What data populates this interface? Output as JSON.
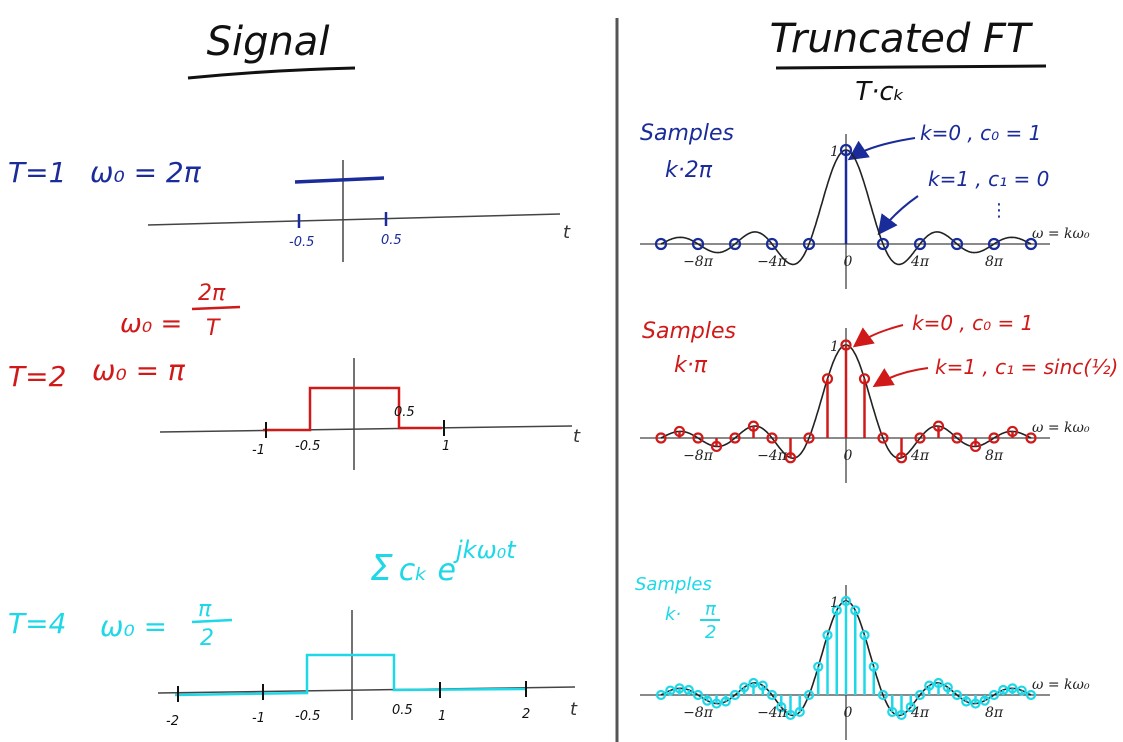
{
  "signal_panel": {
    "title": "Signal",
    "formula_w0": "ω₀ = 2π / T",
    "sum_formula": "Σ cₖ e^{jkω₀t}",
    "rows": [
      {
        "period_label": "T=1",
        "w0_label": "ω₀ = 2π",
        "tick_labels": [
          "-0.5",
          "0.5"
        ],
        "t_label": "t",
        "color": "#1a2b9a"
      },
      {
        "period_label": "T=2",
        "w0_label": "ω₀ = π",
        "tick_labels": [
          "-1",
          "-0.5",
          "0.5",
          "1"
        ],
        "t_label": "t",
        "color": "#d01a1a"
      },
      {
        "period_label": "T=4",
        "w0_label": "ω₀ = π/2",
        "tick_labels": [
          "-2",
          "-1",
          "-0.5",
          "0.5",
          "1",
          "2"
        ],
        "t_label": "t",
        "color": "#1ed8e8"
      }
    ]
  },
  "ft_panel": {
    "title": "Truncated FT",
    "subtitle": "T·cₖ",
    "rows": [
      {
        "samples_label": "Samples",
        "spacing_label": "k·2π",
        "color": "#1a2b9a",
        "annotations": [
          "k=0 , c₀ = 1",
          "k=1 , c₁ = 0",
          "⋮"
        ]
      },
      {
        "samples_label": "Samples",
        "spacing_label": "k·π",
        "color": "#d01a1a",
        "annotations": [
          "k=0 , c₀ = 1",
          "k=1 , c₁ = sinc(½)"
        ]
      },
      {
        "samples_label": "Samples",
        "spacing_label": "k·π/2",
        "color": "#1ed8e8",
        "annotations": []
      }
    ],
    "axis": {
      "y_tick": "1",
      "x_ticks": [
        "−8π",
        "−4π",
        "0",
        "4π",
        "8π"
      ],
      "omega_label": "ω = kω₀"
    }
  },
  "colors": {
    "navy": "#1a2b9a",
    "red": "#d01a1a",
    "cyan": "#1ed8e8",
    "ink": "#111111",
    "divider": "#555555"
  }
}
